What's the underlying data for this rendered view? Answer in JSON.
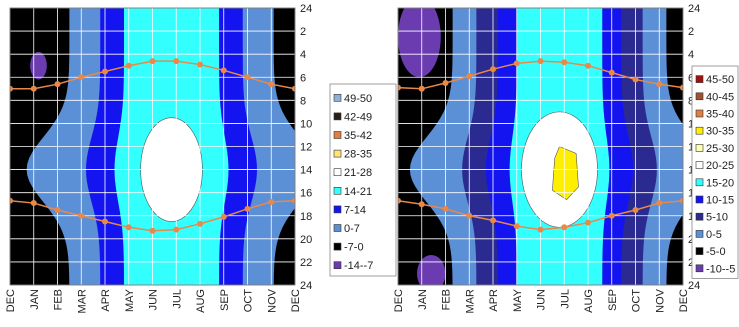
{
  "chart_data": [
    {
      "type": "contour",
      "categories": [
        "DEC",
        "JAN",
        "FEB",
        "MAR",
        "APR",
        "MAY",
        "JUN",
        "JUL",
        "AUG",
        "SEP",
        "OCT",
        "NOV",
        "DEC"
      ],
      "ylim": [
        0,
        24
      ],
      "y_inverted": true,
      "yticks": [
        {
          "value": 0,
          "label": "24"
        },
        2,
        4,
        6,
        8,
        10,
        12,
        14,
        16,
        18,
        20,
        22,
        24
      ],
      "grid": true,
      "levels": [
        {
          "name": "49-50",
          "color": "#8fb0d8"
        },
        {
          "name": "42-49",
          "color": "#2a1e14"
        },
        {
          "name": "35-42",
          "color": "#e08040"
        },
        {
          "name": "28-35",
          "color": "#ffe27a"
        },
        {
          "name": "21-28",
          "color": "#ffffff"
        },
        {
          "name": "14-21",
          "color": "#33ffff"
        },
        {
          "name": "7-14",
          "color": "#1414f0"
        },
        {
          "name": "0-7",
          "color": "#5b8fd6"
        },
        {
          "name": "-7-0",
          "color": "#000000"
        },
        {
          "name": "-14--7",
          "color": "#6a3cb0"
        }
      ],
      "series": [
        {
          "color": "#e8894a",
          "values": [
            7.0,
            7.0,
            6.6,
            6.0,
            5.5,
            5.0,
            4.6,
            4.6,
            4.9,
            5.4,
            6.0,
            6.6,
            7.0
          ]
        },
        {
          "color": "#e8894a",
          "values": [
            16.7,
            16.9,
            17.5,
            18.0,
            18.5,
            19.0,
            19.3,
            19.2,
            18.7,
            18.1,
            17.4,
            16.8,
            16.7
          ]
        }
      ]
    },
    {
      "type": "contour",
      "categories": [
        "DEC",
        "JAN",
        "FEB",
        "MAR",
        "APR",
        "MAY",
        "JUN",
        "JUL",
        "AUG",
        "SEP",
        "OCT",
        "NOV",
        "DEC"
      ],
      "ylim": [
        0,
        24
      ],
      "y_inverted": true,
      "yticks": [
        {
          "value": 0,
          "label": "24"
        },
        2,
        4,
        6,
        8,
        10,
        12,
        14,
        16,
        18,
        20,
        22,
        24
      ],
      "grid": true,
      "levels": [
        {
          "name": "45-50",
          "color": "#a01010"
        },
        {
          "name": "40-45",
          "color": "#a0522d"
        },
        {
          "name": "35-40",
          "color": "#e08040"
        },
        {
          "name": "30-35",
          "color": "#ffee00"
        },
        {
          "name": "25-30",
          "color": "#ffffb0"
        },
        {
          "name": "20-25",
          "color": "#ffffff"
        },
        {
          "name": "15-20",
          "color": "#33ffff"
        },
        {
          "name": "10-15",
          "color": "#1414f0"
        },
        {
          "name": "5-10",
          "color": "#2a2a90"
        },
        {
          "name": "0-5",
          "color": "#5b8fd6"
        },
        {
          "name": "-5-0",
          "color": "#000000"
        },
        {
          "name": "-10--5",
          "color": "#6a3cb0"
        }
      ],
      "series": [
        {
          "color": "#e8894a",
          "values": [
            6.9,
            7.0,
            6.5,
            5.9,
            5.3,
            4.8,
            4.6,
            4.7,
            5.0,
            5.6,
            6.2,
            6.6,
            6.9
          ]
        },
        {
          "color": "#e8894a",
          "values": [
            16.7,
            17.0,
            17.4,
            18.0,
            18.4,
            18.9,
            19.2,
            19.0,
            18.6,
            18.0,
            17.5,
            16.9,
            16.7
          ]
        }
      ]
    }
  ]
}
